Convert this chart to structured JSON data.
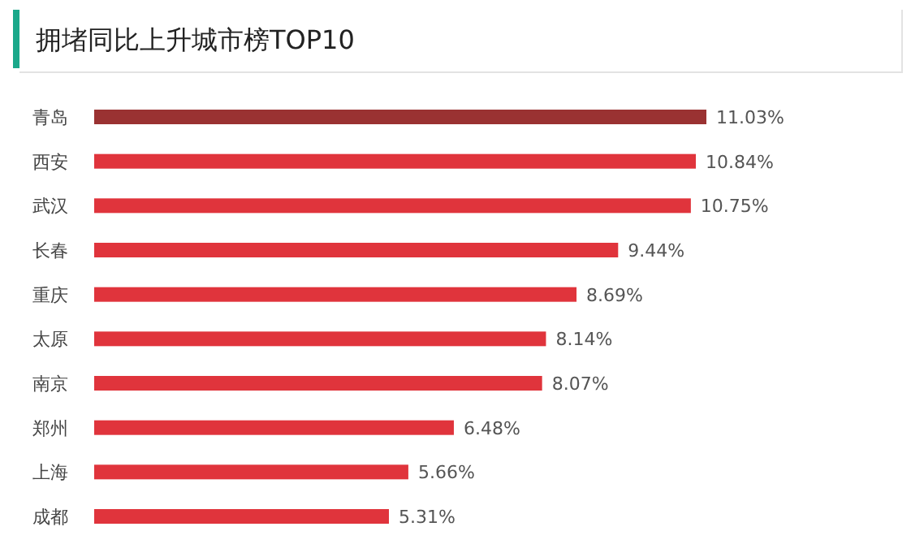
{
  "chart_data": {
    "type": "bar",
    "orientation": "horizontal",
    "title": "拥堵同比上升城市榜TOP10",
    "categories": [
      "青岛",
      "西安",
      "武汉",
      "长春",
      "重庆",
      "太原",
      "南京",
      "郑州",
      "上海",
      "成都"
    ],
    "values": [
      11.03,
      10.84,
      10.75,
      9.44,
      8.69,
      8.14,
      8.07,
      6.48,
      5.66,
      5.31
    ],
    "value_labels": [
      "11.03%",
      "10.84%",
      "10.75%",
      "9.44%",
      "8.69%",
      "8.14%",
      "8.07%",
      "6.48%",
      "5.66%",
      "5.31%"
    ],
    "colors": [
      "#9a3232",
      "#e0343c",
      "#e0343c",
      "#e0343c",
      "#e0343c",
      "#e0343c",
      "#e0343c",
      "#e0343c",
      "#e0343c",
      "#e0343c"
    ]
  }
}
